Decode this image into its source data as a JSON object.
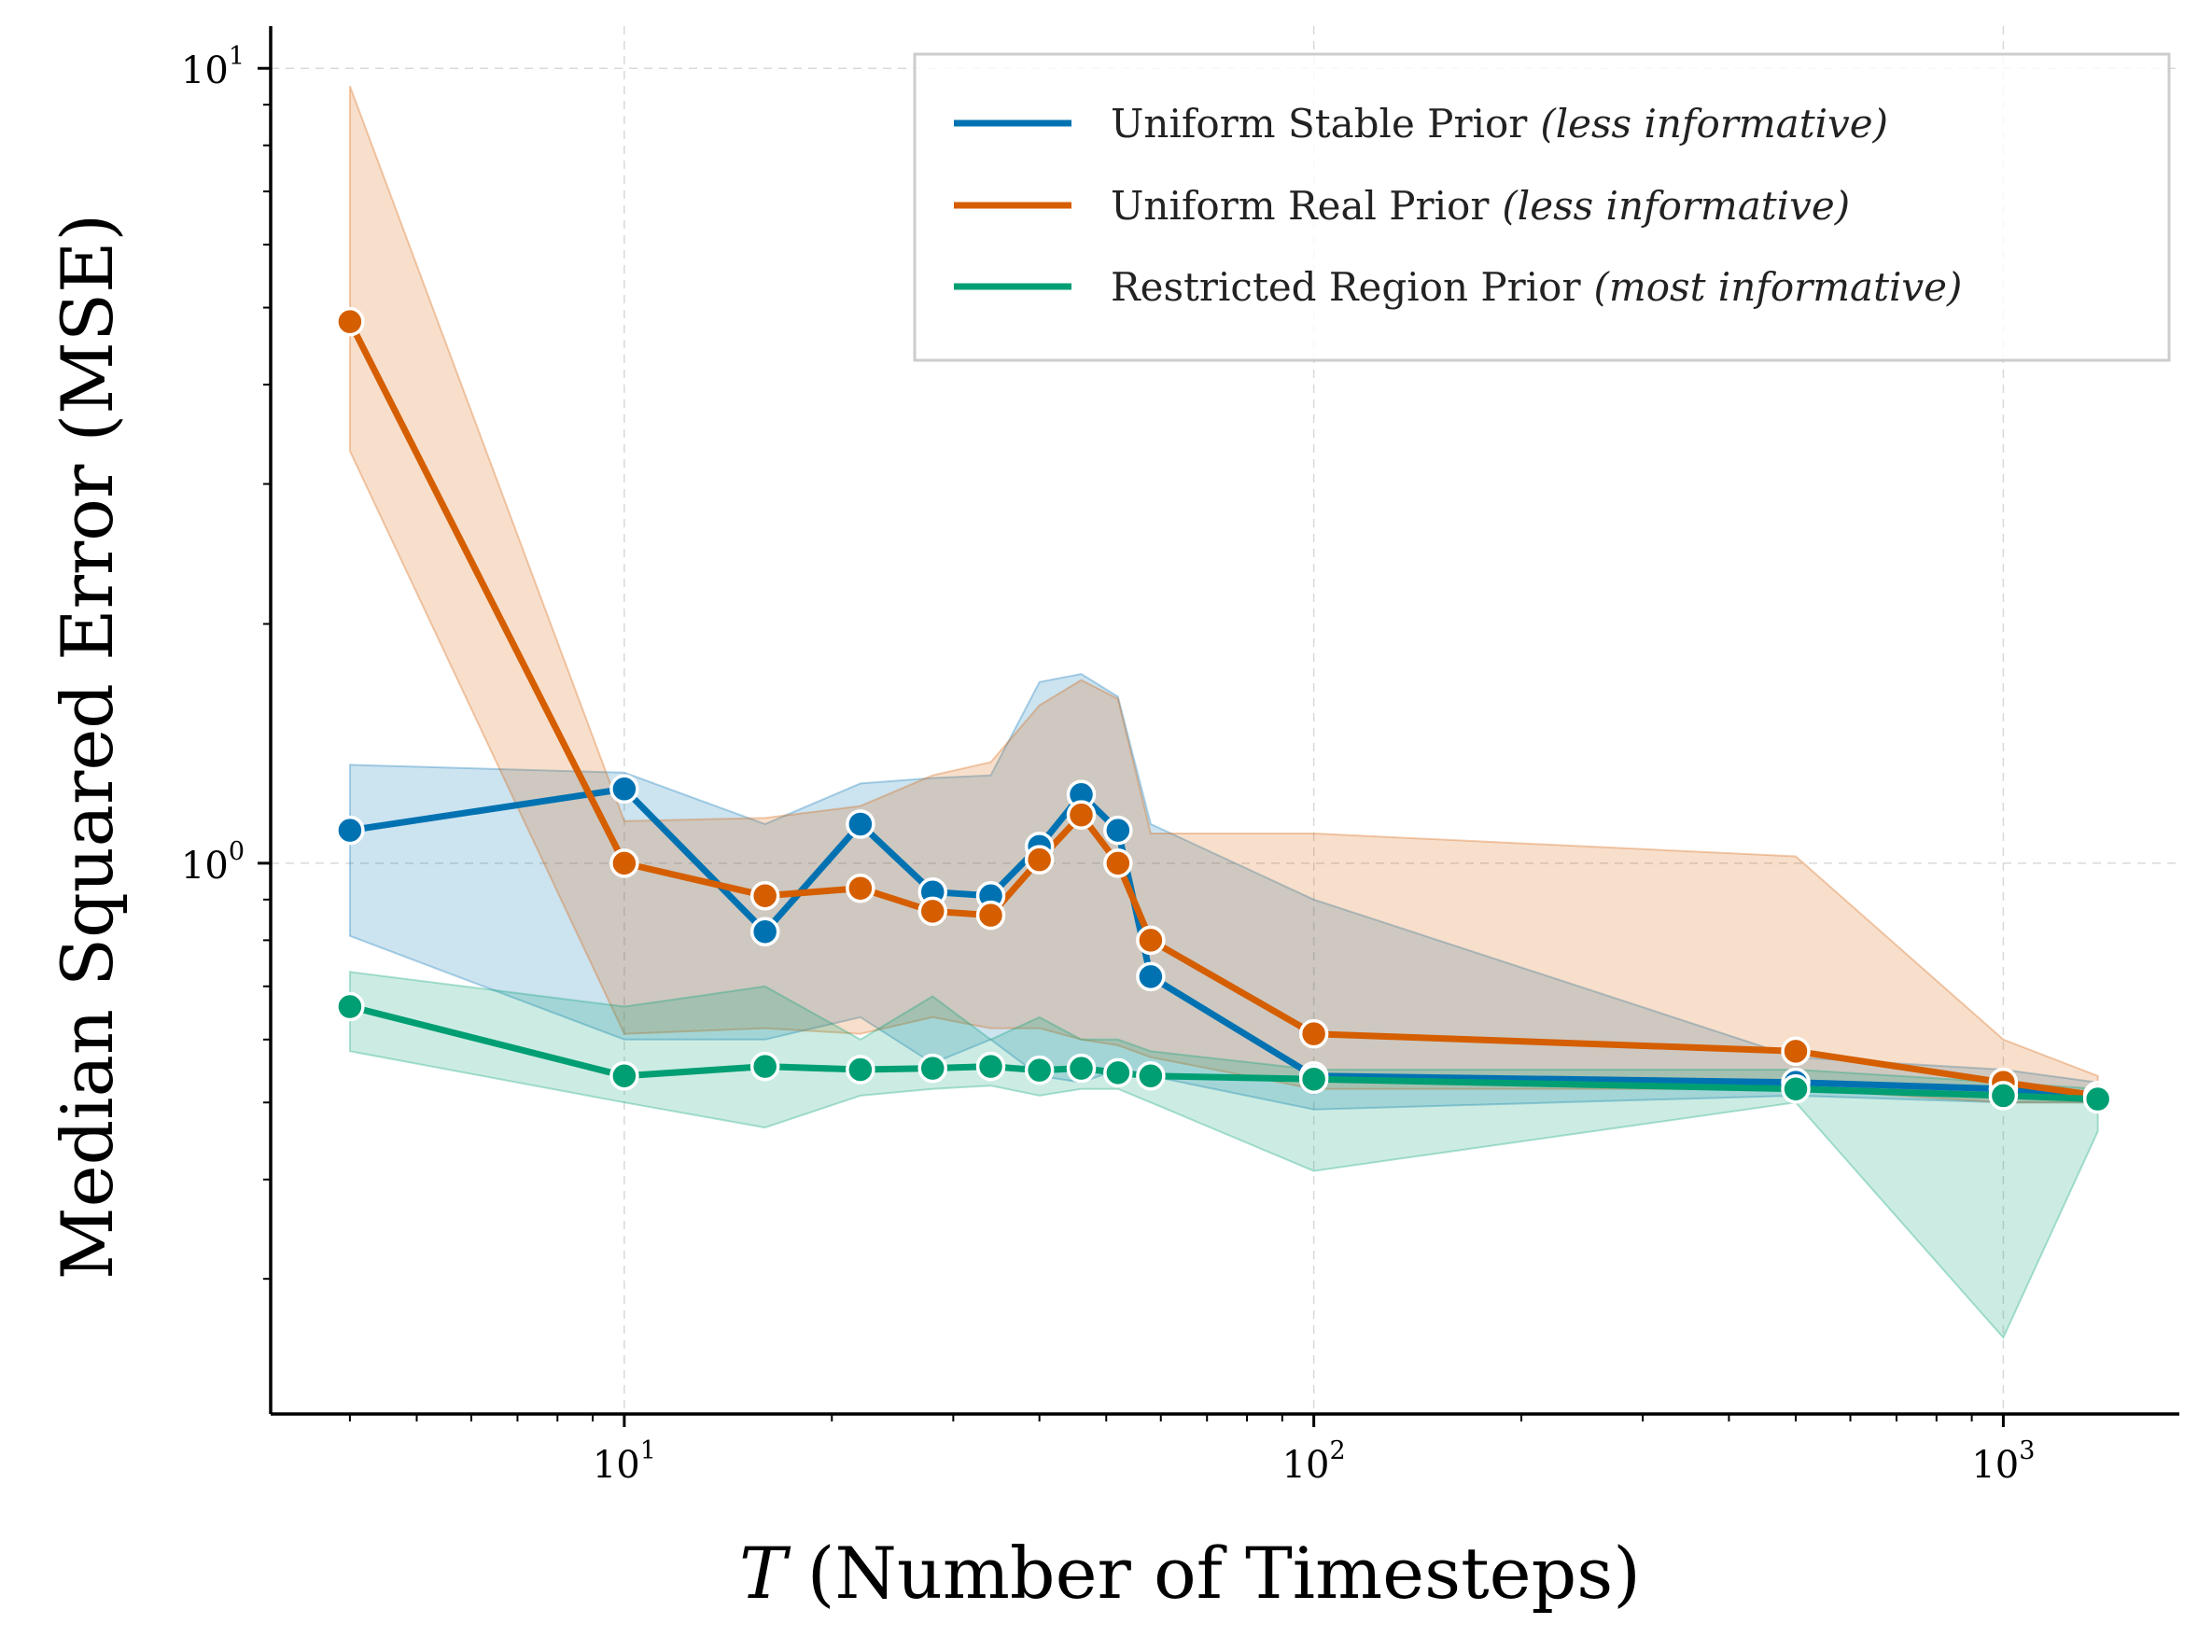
{
  "chart_data": {
    "type": "line",
    "xscale": "log",
    "yscale": "log",
    "xlim": [
      3.07,
      1800
    ],
    "ylim": [
      0.2028,
      11.3
    ],
    "grid": true,
    "legend_position": "top-right",
    "xlabel_var": "T",
    "xlabel_rest": "(Number of Timesteps)",
    "ylabel": "Median Squared Error (MSE)",
    "x_ticks": [
      {
        "value": 10,
        "base": "10",
        "exp": "1"
      },
      {
        "value": 100,
        "base": "10",
        "exp": "2"
      },
      {
        "value": 1000,
        "base": "10",
        "exp": "3"
      }
    ],
    "y_ticks": [
      {
        "value": 1,
        "base": "10",
        "exp": "0"
      },
      {
        "value": 10,
        "base": "10",
        "exp": "1"
      }
    ],
    "series": [
      {
        "name": "Uniform Stable Prior",
        "note": "(less informative)",
        "color": "#0072B2",
        "x": [
          4,
          10,
          16,
          22,
          28,
          34,
          40,
          46,
          52,
          58,
          100,
          500,
          1000,
          1371
        ],
        "y": [
          1.1,
          1.24,
          0.82,
          1.12,
          0.92,
          0.91,
          1.05,
          1.22,
          1.1,
          0.72,
          0.54,
          0.53,
          0.52,
          0.51
        ],
        "lower": [
          0.81,
          0.6,
          0.6,
          0.64,
          0.56,
          0.6,
          0.54,
          0.53,
          0.55,
          0.54,
          0.49,
          0.51,
          0.5,
          0.5
        ],
        "upper": [
          1.33,
          1.3,
          1.12,
          1.26,
          1.28,
          1.29,
          1.69,
          1.73,
          1.62,
          1.12,
          0.9,
          0.57,
          0.55,
          0.53
        ]
      },
      {
        "name": "Uniform Real Prior",
        "note": "(less informative)",
        "color": "#D55E00",
        "x": [
          4,
          10,
          16,
          22,
          28,
          34,
          40,
          46,
          52,
          58,
          100,
          500,
          1000,
          1371
        ],
        "y": [
          4.8,
          1.0,
          0.91,
          0.93,
          0.87,
          0.86,
          1.01,
          1.15,
          1.0,
          0.8,
          0.61,
          0.58,
          0.53,
          0.51
        ],
        "lower": [
          3.3,
          0.61,
          0.62,
          0.61,
          0.64,
          0.62,
          0.62,
          0.6,
          0.59,
          0.57,
          0.52,
          0.52,
          0.5,
          0.5
        ],
        "upper": [
          9.5,
          1.13,
          1.14,
          1.18,
          1.29,
          1.34,
          1.58,
          1.7,
          1.61,
          1.09,
          1.09,
          1.02,
          0.6,
          0.54
        ]
      },
      {
        "name": "Restricted Region Prior",
        "note": "(most informative)",
        "color": "#009E73",
        "x": [
          4,
          10,
          16,
          22,
          28,
          34,
          40,
          46,
          52,
          58,
          100,
          500,
          1000,
          1371
        ],
        "y": [
          0.66,
          0.54,
          0.555,
          0.55,
          0.552,
          0.555,
          0.549,
          0.552,
          0.545,
          0.54,
          0.535,
          0.52,
          0.51,
          0.505
        ],
        "lower": [
          0.58,
          0.5,
          0.465,
          0.51,
          0.52,
          0.525,
          0.51,
          0.52,
          0.52,
          0.5,
          0.41,
          0.5,
          0.253,
          0.46
        ],
        "upper": [
          0.73,
          0.66,
          0.7,
          0.6,
          0.68,
          0.6,
          0.64,
          0.6,
          0.6,
          0.58,
          0.55,
          0.55,
          0.53,
          0.52
        ]
      }
    ]
  }
}
